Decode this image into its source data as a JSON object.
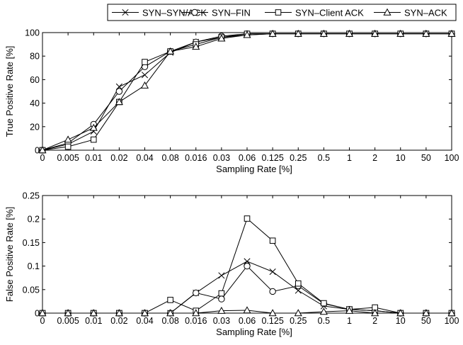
{
  "legend": {
    "placement": "top",
    "entries": [
      {
        "label": "SYN–SYN/ACK",
        "marker": "x"
      },
      {
        "label": "SYN–FIN",
        "marker": "circle"
      },
      {
        "label": "SYN–Client ACK",
        "marker": "square"
      },
      {
        "label": "SYN–ACK",
        "marker": "triangle"
      }
    ]
  },
  "chart_data": [
    {
      "type": "line",
      "xlabel": "Sampling Rate [%]",
      "ylabel": "True Positive Rate [%]",
      "categories": [
        "0",
        "0.005",
        "0.01",
        "0.02",
        "0.04",
        "0.08",
        "0.016",
        "0.03",
        "0.06",
        "0.125",
        "0.25",
        "0.5",
        "1",
        "2",
        "10",
        "50",
        "100"
      ],
      "yticks": [
        "0",
        "20",
        "40",
        "60",
        "80",
        "100"
      ],
      "ylim": [
        0,
        100
      ],
      "grid": false,
      "series": [
        {
          "name": "SYN–SYN/ACK",
          "marker": "x",
          "values": [
            0,
            5,
            16,
            54,
            64,
            83,
            92,
            96,
            98,
            99,
            99,
            99,
            99,
            99,
            99,
            99,
            99
          ]
        },
        {
          "name": "SYN–FIN",
          "marker": "circle",
          "values": [
            0,
            6,
            22,
            50,
            71,
            84,
            92,
            97,
            99,
            99,
            99,
            99,
            99,
            99,
            99,
            99,
            99
          ]
        },
        {
          "name": "SYN–Client ACK",
          "marker": "square",
          "values": [
            0,
            3,
            9,
            41,
            75,
            84,
            90,
            96,
            99,
            99,
            99,
            99,
            99,
            99,
            99,
            99,
            99
          ]
        },
        {
          "name": "SYN–ACK",
          "marker": "triangle",
          "values": [
            0,
            9,
            19,
            41,
            55,
            84,
            88,
            95,
            98,
            99,
            99,
            99,
            99,
            99,
            99,
            99,
            99
          ]
        }
      ]
    },
    {
      "type": "line",
      "xlabel": "Sampling Rate [%]",
      "ylabel": "False Positive Rate [%]",
      "categories": [
        "0",
        "0.005",
        "0.01",
        "0.02",
        "0.04",
        "0.08",
        "0.016",
        "0.03",
        "0.06",
        "0.125",
        "0.25",
        "0.5",
        "1",
        "2",
        "10",
        "50",
        "100"
      ],
      "yticks": [
        "0",
        "0.05",
        "0.1",
        "0.15",
        "0.2",
        "0.25"
      ],
      "ylim": [
        0,
        0.25
      ],
      "grid": false,
      "series": [
        {
          "name": "SYN–SYN/ACK",
          "marker": "x",
          "values": [
            0,
            0,
            0,
            0,
            0,
            0,
            0.043,
            0.08,
            0.11,
            0.088,
            0.048,
            0.015,
            0.008,
            0.005,
            0,
            0,
            0
          ]
        },
        {
          "name": "SYN–FIN",
          "marker": "circle",
          "values": [
            0,
            0,
            0,
            0,
            0,
            0,
            0.043,
            0.03,
            0.1,
            0.046,
            0.058,
            0.02,
            0.008,
            0.005,
            0,
            0,
            0
          ]
        },
        {
          "name": "SYN–Client ACK",
          "marker": "square",
          "values": [
            0,
            0,
            0,
            0,
            0,
            0.028,
            0.005,
            0.042,
            0.201,
            0.154,
            0.063,
            0.021,
            0.008,
            0.012,
            0,
            0,
            0
          ]
        },
        {
          "name": "SYN–ACK",
          "marker": "triangle",
          "values": [
            0,
            0,
            0,
            0,
            0,
            0,
            0,
            0.005,
            0.006,
            0,
            0,
            0.003,
            0.005,
            0,
            0,
            0,
            0
          ]
        }
      ]
    }
  ]
}
